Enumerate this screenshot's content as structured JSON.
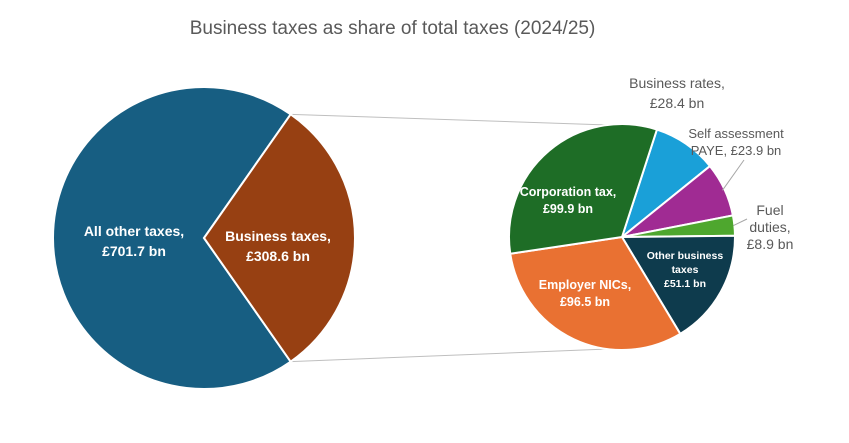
{
  "chart_data": [
    {
      "type": "pie",
      "title": "Business taxes as share of total taxes (2024/25)",
      "slices": [
        {
          "name": "All other taxes",
          "label_lines": [
            "All other taxes,",
            "£701.7 bn"
          ],
          "value": 701.7,
          "unit": "£ bn",
          "color": "#175E82"
        },
        {
          "name": "Business taxes",
          "label_lines": [
            "Business taxes,",
            "£308.6 bn"
          ],
          "value": 308.6,
          "unit": "£ bn",
          "color": "#974012"
        }
      ]
    },
    {
      "type": "pie",
      "slices": [
        {
          "name": "Business rates",
          "label_lines": [
            "Business rates,",
            "£28.4 bn"
          ],
          "value": 28.4,
          "unit": "£ bn",
          "color": "#1AA0D8"
        },
        {
          "name": "Self assessment PAYE",
          "label_lines": [
            "Self assessment",
            "PAYE,  £23.9 bn"
          ],
          "value": 23.9,
          "unit": "£ bn",
          "color": "#A02B93"
        },
        {
          "name": "Fuel duties",
          "label_lines": [
            "Fuel",
            "duties,",
            "£8.9 bn"
          ],
          "value": 8.9,
          "unit": "£ bn",
          "color": "#4EA72E"
        },
        {
          "name": "Other business taxes",
          "label_lines": [
            "Other business",
            "taxes",
            "£51.1 bn"
          ],
          "value": 51.1,
          "unit": "£ bn",
          "color": "#0E3B4D"
        },
        {
          "name": "Employer NICs",
          "label_lines": [
            "Employer NICs,",
            "£96.5 bn"
          ],
          "value": 96.5,
          "unit": "£ bn",
          "color": "#E97132"
        },
        {
          "name": "Corporation tax",
          "label_lines": [
            "Corporation tax,",
            "£99.9 bn"
          ],
          "value": 99.9,
          "unit": "£ bn",
          "color": "#1E6D26"
        }
      ]
    }
  ]
}
